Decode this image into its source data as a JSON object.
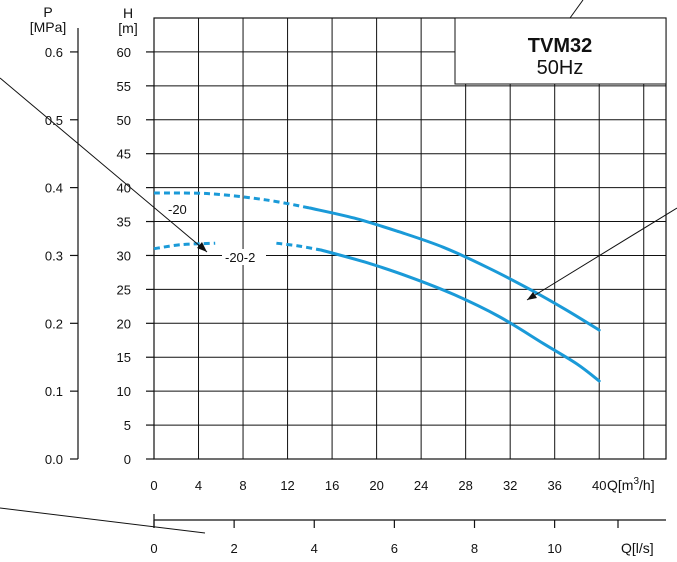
{
  "chart_data": {
    "type": "line",
    "title": "TVM32",
    "subtitle": "50Hz",
    "x_axis": {
      "label": "Q[m³/h]",
      "label_main": "Q[m",
      "label_sup": "3",
      "label_tail": "/h]",
      "ticks": [
        0,
        4,
        8,
        12,
        16,
        20,
        24,
        28,
        32,
        36,
        40
      ],
      "range": [
        0,
        46
      ]
    },
    "x_axis_secondary": {
      "label": "Q[l/s]",
      "ticks": [
        0,
        2,
        4,
        6,
        8,
        10
      ],
      "range": [
        0,
        12.78
      ]
    },
    "y_axis_head": {
      "label_top": "H",
      "label_unit": "[m]",
      "ticks": [
        0,
        5,
        10,
        15,
        20,
        25,
        30,
        35,
        40,
        45,
        50,
        55,
        60
      ],
      "range": [
        0,
        65
      ]
    },
    "y_axis_pressure": {
      "label_top": "P",
      "label_unit": "[MPa]",
      "ticks": [
        "0.0",
        "0.1",
        "0.2",
        "0.3",
        "0.4",
        "0.5",
        "0.6"
      ],
      "range": [
        0,
        0.65
      ]
    },
    "series": [
      {
        "name": "-20",
        "color": "#1a9ad8",
        "dashed": {
          "x": [
            0,
            5,
            10,
            14
          ],
          "y": [
            39.2,
            39.1,
            38.2,
            37.0
          ]
        },
        "solid": {
          "x": [
            14,
            18,
            22,
            26,
            30,
            34,
            37,
            40
          ],
          "y": [
            37.0,
            35.5,
            33.5,
            31.2,
            28.2,
            24.8,
            22.0,
            19.0
          ]
        }
      },
      {
        "name": "-20-2",
        "color": "#1a9ad8",
        "dashed_a": {
          "x": [
            0,
            2.5,
            5.5
          ],
          "y": [
            31.0,
            31.6,
            31.8
          ]
        },
        "dashed_b": {
          "x": [
            11,
            13,
            15
          ],
          "y": [
            31.8,
            31.4,
            30.8
          ]
        },
        "solid": {
          "x": [
            15,
            19,
            23,
            27,
            31,
            35,
            38,
            40
          ],
          "y": [
            30.8,
            29.0,
            26.8,
            24.2,
            21.0,
            17.0,
            14.0,
            11.5
          ]
        }
      }
    ],
    "grid": true
  }
}
